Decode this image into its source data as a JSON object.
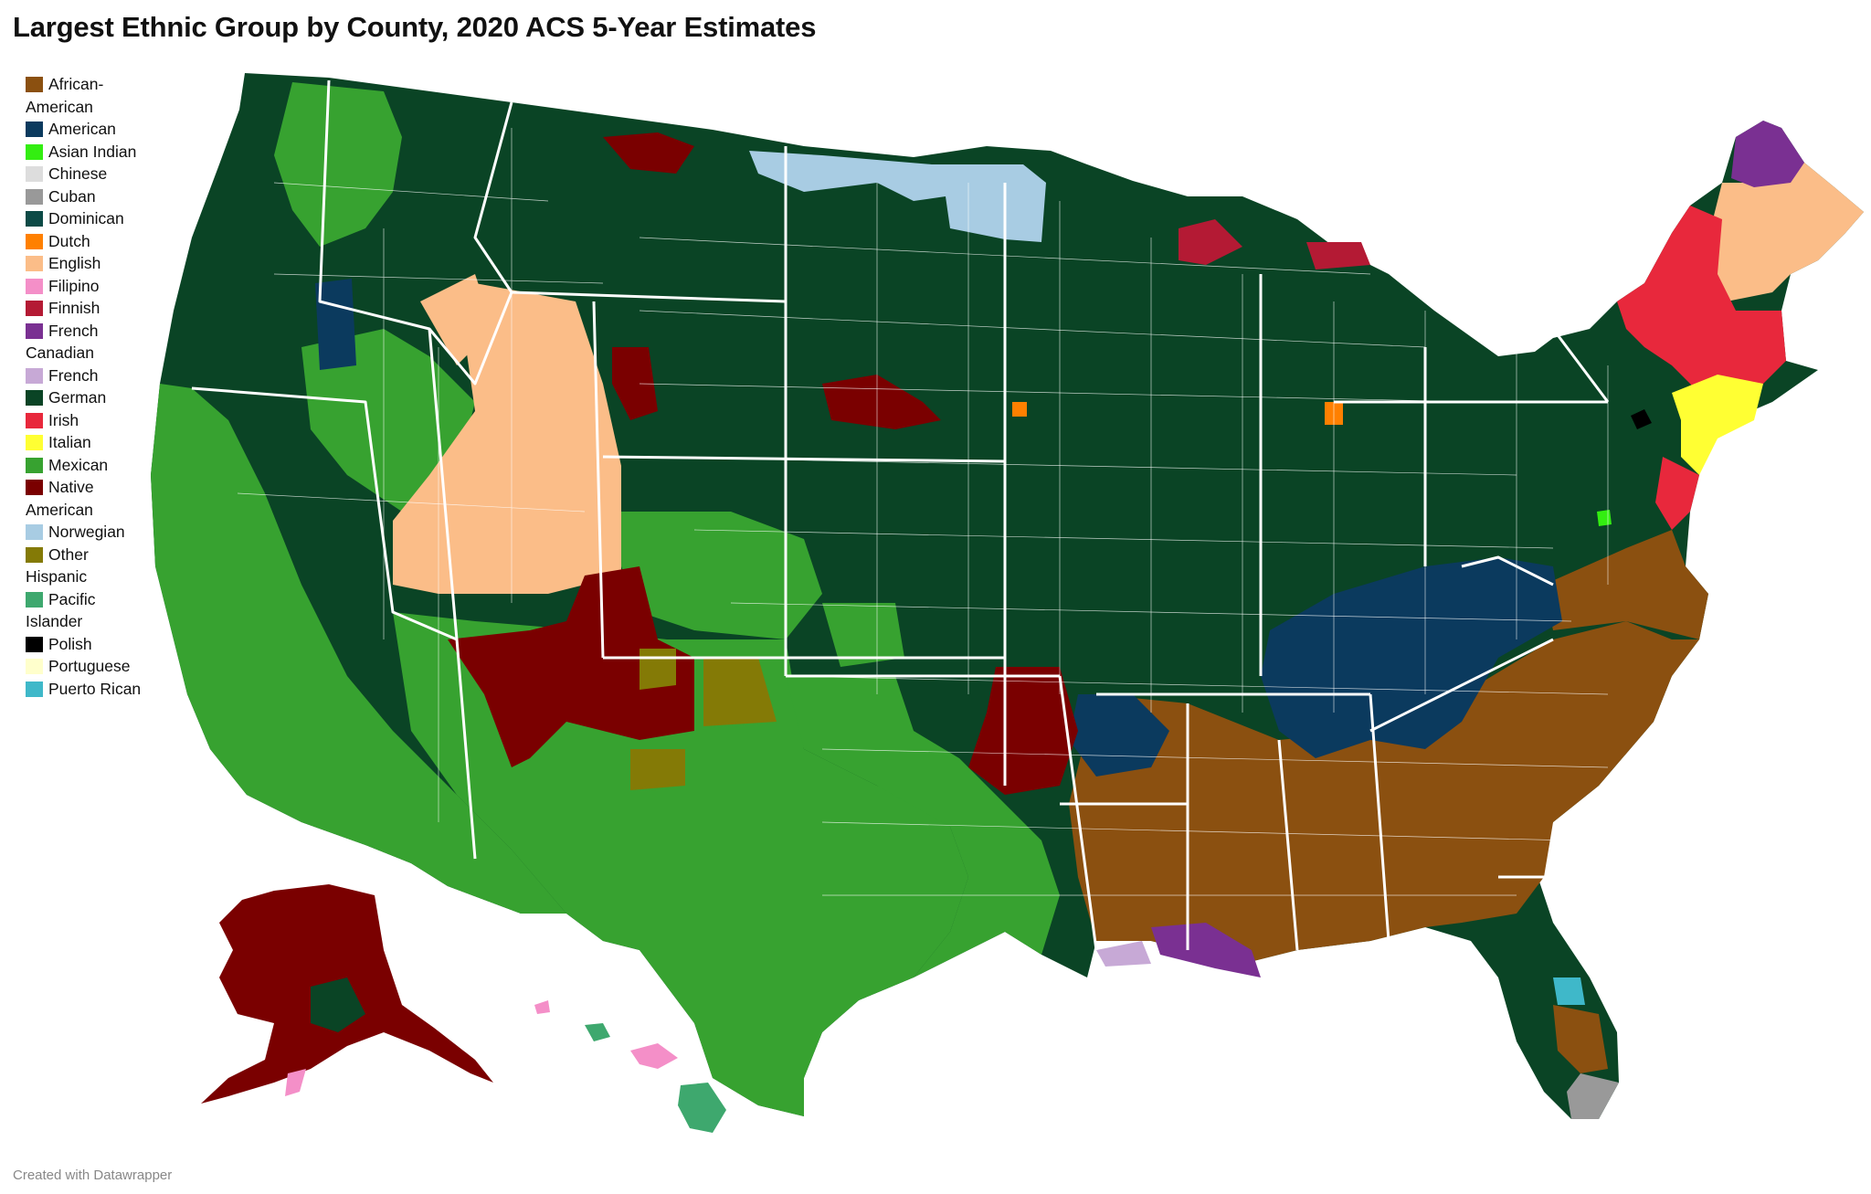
{
  "title": "Largest Ethnic Group by County, 2020 ACS 5-Year Estimates",
  "credit": "Created with Datawrapper",
  "legend": [
    {
      "label": "African-American",
      "color": "#8b5010"
    },
    {
      "label": "American",
      "color": "#0b3a5e"
    },
    {
      "label": "Asian Indian",
      "color": "#33ee11"
    },
    {
      "label": "Chinese",
      "color": "#dddddd"
    },
    {
      "label": "Cuban",
      "color": "#999999"
    },
    {
      "label": "Dominican",
      "color": "#0c4a46"
    },
    {
      "label": "Dutch",
      "color": "#ff8000"
    },
    {
      "label": "English",
      "color": "#fbbd88"
    },
    {
      "label": "Filipino",
      "color": "#f48fc8"
    },
    {
      "label": "Finnish",
      "color": "#b41a34"
    },
    {
      "label": "French Canadian",
      "color": "#7a3092"
    },
    {
      "label": "French",
      "color": "#c7a9d6"
    },
    {
      "label": "German",
      "color": "#0a4425"
    },
    {
      "label": "Irish",
      "color": "#e8283c"
    },
    {
      "label": "Italian",
      "color": "#ffff33"
    },
    {
      "label": "Mexican",
      "color": "#37a230"
    },
    {
      "label": "Native American",
      "color": "#7a0000"
    },
    {
      "label": "Norwegian",
      "color": "#a8cce3"
    },
    {
      "label": "Other Hispanic",
      "color": "#847a06"
    },
    {
      "label": "Pacific Islander",
      "color": "#3ea86e"
    },
    {
      "label": "Polish",
      "color": "#000000"
    },
    {
      "label": "Portuguese",
      "color": "#ffffcc"
    },
    {
      "label": "Puerto Rican",
      "color": "#3fb8c9"
    }
  ]
}
